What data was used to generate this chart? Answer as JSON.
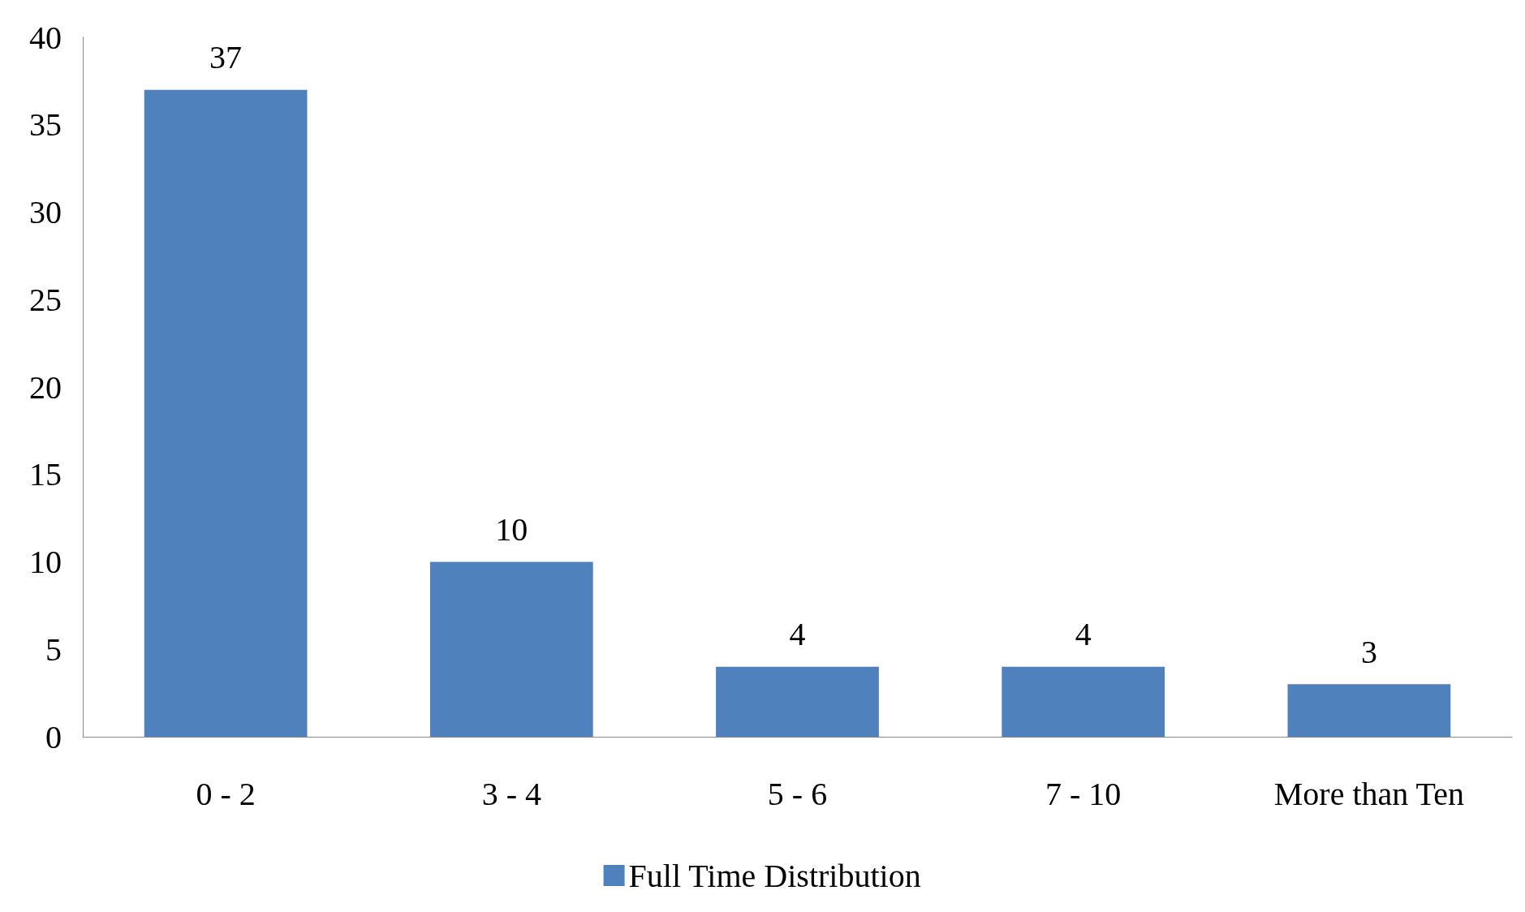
{
  "chart_data": {
    "type": "bar",
    "categories": [
      "0 - 2",
      "3 - 4",
      "5 - 6",
      "7 - 10",
      "More than Ten"
    ],
    "series": [
      {
        "name": "Full Time Distribution",
        "color": "#4f81bd",
        "values": [
          37,
          10,
          4,
          4,
          3
        ]
      }
    ],
    "ylim": [
      0,
      40
    ],
    "yticks": [
      0,
      5,
      10,
      15,
      20,
      25,
      30,
      35,
      40
    ],
    "grid": false,
    "legend": "bottom",
    "data_labels": true
  }
}
